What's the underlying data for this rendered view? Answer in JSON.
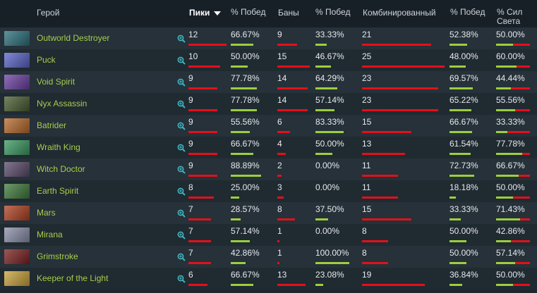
{
  "header": {
    "hero": "Герой",
    "picks": "Пики",
    "pick_win": "% Побед",
    "bans": "Баны",
    "ban_win": "% Побед",
    "combined": "Комбинированный",
    "combined_win": "% Побед",
    "radiant": "% Сил Света"
  },
  "colors": {
    "bar_red": "#e3101b",
    "bar_green": "#9ccf3d",
    "hero_name": "#a5ce4b"
  },
  "icons": {
    "zoom": "magnify-plus-icon"
  },
  "heroes": [
    {
      "name": "Outworld Destroyer",
      "picks": "12",
      "pick_win": "66.67%",
      "bans": "9",
      "ban_win": "33.33%",
      "combined": "21",
      "combined_win": "52.38%",
      "radiant": "50.00%",
      "portrait": "#2a6f7a"
    },
    {
      "name": "Puck",
      "picks": "10",
      "pick_win": "50.00%",
      "bans": "15",
      "ban_win": "46.67%",
      "combined": "25",
      "combined_win": "48.00%",
      "radiant": "60.00%",
      "portrait": "#5a63c8"
    },
    {
      "name": "Void Spirit",
      "picks": "9",
      "pick_win": "77.78%",
      "bans": "14",
      "ban_win": "64.29%",
      "combined": "23",
      "combined_win": "69.57%",
      "radiant": "44.44%",
      "portrait": "#6b3fa2"
    },
    {
      "name": "Nyx Assassin",
      "picks": "9",
      "pick_win": "77.78%",
      "bans": "14",
      "ban_win": "57.14%",
      "combined": "23",
      "combined_win": "65.22%",
      "radiant": "55.56%",
      "portrait": "#4a5c2f"
    },
    {
      "name": "Batrider",
      "picks": "9",
      "pick_win": "55.56%",
      "bans": "6",
      "ban_win": "83.33%",
      "combined": "15",
      "combined_win": "66.67%",
      "radiant": "33.33%",
      "portrait": "#b86a2a"
    },
    {
      "name": "Wraith King",
      "picks": "9",
      "pick_win": "66.67%",
      "bans": "4",
      "ban_win": "50.00%",
      "combined": "13",
      "combined_win": "61.54%",
      "radiant": "77.78%",
      "portrait": "#3a9a62"
    },
    {
      "name": "Witch Doctor",
      "picks": "9",
      "pick_win": "88.89%",
      "bans": "2",
      "ban_win": "0.00%",
      "combined": "11",
      "combined_win": "72.73%",
      "radiant": "66.67%",
      "portrait": "#5a4a6a"
    },
    {
      "name": "Earth Spirit",
      "picks": "8",
      "pick_win": "25.00%",
      "bans": "3",
      "ban_win": "0.00%",
      "combined": "11",
      "combined_win": "18.18%",
      "radiant": "50.00%",
      "portrait": "#3f7a3a"
    },
    {
      "name": "Mars",
      "picks": "7",
      "pick_win": "28.57%",
      "bans": "8",
      "ban_win": "37.50%",
      "combined": "15",
      "combined_win": "33.33%",
      "radiant": "71.43%",
      "portrait": "#b0401f"
    },
    {
      "name": "Mirana",
      "picks": "7",
      "pick_win": "57.14%",
      "bans": "1",
      "ban_win": "0.00%",
      "combined": "8",
      "combined_win": "50.00%",
      "radiant": "42.86%",
      "portrait": "#8a8fa8"
    },
    {
      "name": "Grimstroke",
      "picks": "7",
      "pick_win": "42.86%",
      "bans": "1",
      "ban_win": "100.00%",
      "combined": "8",
      "combined_win": "50.00%",
      "radiant": "57.14%",
      "portrait": "#7a2020"
    },
    {
      "name": "Keeper of the Light",
      "picks": "6",
      "pick_win": "66.67%",
      "bans": "13",
      "ban_win": "23.08%",
      "combined": "19",
      "combined_win": "36.84%",
      "radiant": "50.00%",
      "portrait": "#c9a23a"
    }
  ]
}
